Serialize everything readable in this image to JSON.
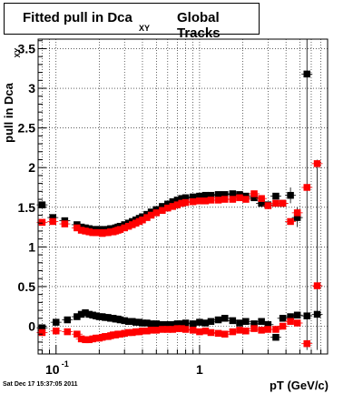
{
  "title": {
    "main": "Fitted pull in Dca",
    "sub": "XY",
    "tail": "Global Tracks"
  },
  "date_stamp": "Sat Dec 17 15:37:05 2011",
  "chart_data": {
    "type": "scatter",
    "title": "Fitted pull in Dca XY Global Tracks",
    "xlabel": "pT (GeV/c)",
    "ylabel": "pull in Dca",
    "ylabel_sub": "XY",
    "xscale": "log",
    "xlim": [
      0.075,
      7.8
    ],
    "ylim": [
      -0.35,
      3.62
    ],
    "grid": true,
    "x_ticks": [
      {
        "value": 0.1,
        "label": "10",
        "exp": "-1"
      },
      {
        "value": 1,
        "label": "1",
        "exp": ""
      }
    ],
    "y_ticks": [
      {
        "value": 0,
        "label": "0"
      },
      {
        "value": 0.5,
        "label": "0.5"
      },
      {
        "value": 1,
        "label": "1"
      },
      {
        "value": 1.5,
        "label": "1.5"
      },
      {
        "value": 2,
        "label": "2"
      },
      {
        "value": 2.5,
        "label": "2.5"
      },
      {
        "value": 3,
        "label": "3"
      },
      {
        "value": 3.5,
        "label": "3.5"
      }
    ],
    "series": [
      {
        "color": "#000000",
        "marker": "square",
        "points": [
          {
            "x": 0.08,
            "y": 1.53
          },
          {
            "x": 0.095,
            "y": 1.37
          },
          {
            "x": 0.115,
            "y": 1.33
          },
          {
            "x": 0.14,
            "y": 1.28
          },
          {
            "x": 0.15,
            "y": 1.25
          },
          {
            "x": 0.16,
            "y": 1.24
          },
          {
            "x": 0.17,
            "y": 1.23
          },
          {
            "x": 0.18,
            "y": 1.22
          },
          {
            "x": 0.19,
            "y": 1.22
          },
          {
            "x": 0.2,
            "y": 1.22
          },
          {
            "x": 0.21,
            "y": 1.21
          },
          {
            "x": 0.22,
            "y": 1.22
          },
          {
            "x": 0.23,
            "y": 1.22
          },
          {
            "x": 0.24,
            "y": 1.23
          },
          {
            "x": 0.25,
            "y": 1.23
          },
          {
            "x": 0.26,
            "y": 1.24
          },
          {
            "x": 0.27,
            "y": 1.25
          },
          {
            "x": 0.28,
            "y": 1.26
          },
          {
            "x": 0.3,
            "y": 1.28
          },
          {
            "x": 0.32,
            "y": 1.3
          },
          {
            "x": 0.34,
            "y": 1.32
          },
          {
            "x": 0.36,
            "y": 1.34
          },
          {
            "x": 0.38,
            "y": 1.36
          },
          {
            "x": 0.4,
            "y": 1.38
          },
          {
            "x": 0.43,
            "y": 1.41
          },
          {
            "x": 0.46,
            "y": 1.44
          },
          {
            "x": 0.5,
            "y": 1.47
          },
          {
            "x": 0.55,
            "y": 1.51
          },
          {
            "x": 0.6,
            "y": 1.54
          },
          {
            "x": 0.65,
            "y": 1.57
          },
          {
            "x": 0.7,
            "y": 1.59
          },
          {
            "x": 0.75,
            "y": 1.61
          },
          {
            "x": 0.8,
            "y": 1.62
          },
          {
            "x": 0.9,
            "y": 1.63
          },
          {
            "x": 1.0,
            "y": 1.64
          },
          {
            "x": 1.1,
            "y": 1.65
          },
          {
            "x": 1.2,
            "y": 1.65
          },
          {
            "x": 1.35,
            "y": 1.66
          },
          {
            "x": 1.5,
            "y": 1.66
          },
          {
            "x": 1.7,
            "y": 1.67
          },
          {
            "x": 1.9,
            "y": 1.66
          },
          {
            "x": 2.1,
            "y": 1.64
          },
          {
            "x": 2.4,
            "y": 1.62
          },
          {
            "x": 2.7,
            "y": 1.55
          },
          {
            "x": 3.0,
            "y": 1.53
          },
          {
            "x": 3.4,
            "y": 1.64
          },
          {
            "x": 3.8,
            "y": 1.55
          },
          {
            "x": 4.3,
            "y": 1.65
          },
          {
            "x": 4.8,
            "y": 1.37
          },
          {
            "x": 5.6,
            "y": 3.18
          },
          {
            "x": 0.08,
            "y": -0.02
          },
          {
            "x": 0.1,
            "y": 0.05
          },
          {
            "x": 0.12,
            "y": 0.08
          },
          {
            "x": 0.14,
            "y": 0.12
          },
          {
            "x": 0.15,
            "y": 0.15
          },
          {
            "x": 0.16,
            "y": 0.17
          },
          {
            "x": 0.17,
            "y": 0.15
          },
          {
            "x": 0.18,
            "y": 0.14
          },
          {
            "x": 0.19,
            "y": 0.13
          },
          {
            "x": 0.2,
            "y": 0.12
          },
          {
            "x": 0.21,
            "y": 0.12
          },
          {
            "x": 0.22,
            "y": 0.11
          },
          {
            "x": 0.23,
            "y": 0.11
          },
          {
            "x": 0.24,
            "y": 0.1
          },
          {
            "x": 0.25,
            "y": 0.1
          },
          {
            "x": 0.26,
            "y": 0.09
          },
          {
            "x": 0.27,
            "y": 0.09
          },
          {
            "x": 0.28,
            "y": 0.08
          },
          {
            "x": 0.3,
            "y": 0.07
          },
          {
            "x": 0.32,
            "y": 0.06
          },
          {
            "x": 0.34,
            "y": 0.06
          },
          {
            "x": 0.36,
            "y": 0.05
          },
          {
            "x": 0.38,
            "y": 0.05
          },
          {
            "x": 0.4,
            "y": 0.04
          },
          {
            "x": 0.43,
            "y": 0.04
          },
          {
            "x": 0.46,
            "y": 0.03
          },
          {
            "x": 0.5,
            "y": 0.03
          },
          {
            "x": 0.55,
            "y": 0.02
          },
          {
            "x": 0.6,
            "y": 0.02
          },
          {
            "x": 0.65,
            "y": 0.02
          },
          {
            "x": 0.7,
            "y": 0.03
          },
          {
            "x": 0.75,
            "y": 0.03
          },
          {
            "x": 0.8,
            "y": 0.04
          },
          {
            "x": 0.9,
            "y": 0.03
          },
          {
            "x": 1.0,
            "y": 0.05
          },
          {
            "x": 1.1,
            "y": 0.04
          },
          {
            "x": 1.2,
            "y": 0.06
          },
          {
            "x": 1.35,
            "y": 0.08
          },
          {
            "x": 1.5,
            "y": 0.1
          },
          {
            "x": 1.7,
            "y": 0.07
          },
          {
            "x": 1.9,
            "y": 0.04
          },
          {
            "x": 2.1,
            "y": 0.06
          },
          {
            "x": 2.4,
            "y": 0.03
          },
          {
            "x": 2.7,
            "y": 0.06
          },
          {
            "x": 3.0,
            "y": 0.02
          },
          {
            "x": 3.4,
            "y": -0.14
          },
          {
            "x": 3.8,
            "y": 0.1
          },
          {
            "x": 4.3,
            "y": 0.12
          },
          {
            "x": 4.8,
            "y": 0.14
          },
          {
            "x": 5.6,
            "y": 0.13
          },
          {
            "x": 6.6,
            "y": 0.15
          }
        ]
      },
      {
        "color": "#ff0000",
        "marker": "square",
        "points": [
          {
            "x": 0.08,
            "y": 1.31
          },
          {
            "x": 0.095,
            "y": 1.32
          },
          {
            "x": 0.115,
            "y": 1.29
          },
          {
            "x": 0.14,
            "y": 1.24
          },
          {
            "x": 0.15,
            "y": 1.21
          },
          {
            "x": 0.16,
            "y": 1.2
          },
          {
            "x": 0.17,
            "y": 1.19
          },
          {
            "x": 0.18,
            "y": 1.18
          },
          {
            "x": 0.19,
            "y": 1.18
          },
          {
            "x": 0.2,
            "y": 1.18
          },
          {
            "x": 0.21,
            "y": 1.17
          },
          {
            "x": 0.22,
            "y": 1.18
          },
          {
            "x": 0.23,
            "y": 1.18
          },
          {
            "x": 0.24,
            "y": 1.19
          },
          {
            "x": 0.25,
            "y": 1.19
          },
          {
            "x": 0.26,
            "y": 1.2
          },
          {
            "x": 0.27,
            "y": 1.21
          },
          {
            "x": 0.28,
            "y": 1.22
          },
          {
            "x": 0.3,
            "y": 1.24
          },
          {
            "x": 0.32,
            "y": 1.26
          },
          {
            "x": 0.34,
            "y": 1.28
          },
          {
            "x": 0.36,
            "y": 1.3
          },
          {
            "x": 0.38,
            "y": 1.32
          },
          {
            "x": 0.4,
            "y": 1.34
          },
          {
            "x": 0.43,
            "y": 1.37
          },
          {
            "x": 0.46,
            "y": 1.4
          },
          {
            "x": 0.5,
            "y": 1.43
          },
          {
            "x": 0.55,
            "y": 1.46
          },
          {
            "x": 0.6,
            "y": 1.49
          },
          {
            "x": 0.65,
            "y": 1.51
          },
          {
            "x": 0.7,
            "y": 1.53
          },
          {
            "x": 0.75,
            "y": 1.55
          },
          {
            "x": 0.8,
            "y": 1.56
          },
          {
            "x": 0.9,
            "y": 1.57
          },
          {
            "x": 1.0,
            "y": 1.58
          },
          {
            "x": 1.1,
            "y": 1.58
          },
          {
            "x": 1.2,
            "y": 1.59
          },
          {
            "x": 1.35,
            "y": 1.59
          },
          {
            "x": 1.5,
            "y": 1.6
          },
          {
            "x": 1.7,
            "y": 1.6
          },
          {
            "x": 1.9,
            "y": 1.62
          },
          {
            "x": 2.1,
            "y": 1.6
          },
          {
            "x": 2.4,
            "y": 1.67
          },
          {
            "x": 2.7,
            "y": 1.61
          },
          {
            "x": 3.0,
            "y": 1.52
          },
          {
            "x": 3.4,
            "y": 1.55
          },
          {
            "x": 3.8,
            "y": 1.55
          },
          {
            "x": 4.3,
            "y": 1.32
          },
          {
            "x": 4.8,
            "y": 1.43
          },
          {
            "x": 5.6,
            "y": 1.75
          },
          {
            "x": 6.6,
            "y": 2.05
          },
          {
            "x": 0.08,
            "y": -0.08
          },
          {
            "x": 0.1,
            "y": -0.06
          },
          {
            "x": 0.12,
            "y": -0.07
          },
          {
            "x": 0.14,
            "y": -0.1
          },
          {
            "x": 0.15,
            "y": -0.16
          },
          {
            "x": 0.16,
            "y": -0.17
          },
          {
            "x": 0.17,
            "y": -0.17
          },
          {
            "x": 0.18,
            "y": -0.16
          },
          {
            "x": 0.19,
            "y": -0.15
          },
          {
            "x": 0.2,
            "y": -0.15
          },
          {
            "x": 0.21,
            "y": -0.14
          },
          {
            "x": 0.22,
            "y": -0.13
          },
          {
            "x": 0.23,
            "y": -0.13
          },
          {
            "x": 0.24,
            "y": -0.12
          },
          {
            "x": 0.25,
            "y": -0.11
          },
          {
            "x": 0.26,
            "y": -0.11
          },
          {
            "x": 0.27,
            "y": -0.1
          },
          {
            "x": 0.28,
            "y": -0.1
          },
          {
            "x": 0.3,
            "y": -0.09
          },
          {
            "x": 0.32,
            "y": -0.08
          },
          {
            "x": 0.34,
            "y": -0.08
          },
          {
            "x": 0.36,
            "y": -0.07
          },
          {
            "x": 0.38,
            "y": -0.07
          },
          {
            "x": 0.4,
            "y": -0.06
          },
          {
            "x": 0.43,
            "y": -0.06
          },
          {
            "x": 0.46,
            "y": -0.05
          },
          {
            "x": 0.5,
            "y": -0.05
          },
          {
            "x": 0.55,
            "y": -0.04
          },
          {
            "x": 0.6,
            "y": -0.04
          },
          {
            "x": 0.65,
            "y": -0.04
          },
          {
            "x": 0.7,
            "y": -0.03
          },
          {
            "x": 0.75,
            "y": -0.03
          },
          {
            "x": 0.8,
            "y": -0.04
          },
          {
            "x": 0.9,
            "y": -0.05
          },
          {
            "x": 1.0,
            "y": -0.07
          },
          {
            "x": 1.1,
            "y": -0.06
          },
          {
            "x": 1.2,
            "y": -0.08
          },
          {
            "x": 1.35,
            "y": -0.09
          },
          {
            "x": 1.5,
            "y": -0.1
          },
          {
            "x": 1.7,
            "y": -0.07
          },
          {
            "x": 1.9,
            "y": -0.05
          },
          {
            "x": 2.1,
            "y": -0.06
          },
          {
            "x": 2.4,
            "y": -0.03
          },
          {
            "x": 2.7,
            "y": -0.05
          },
          {
            "x": 3.0,
            "y": -0.04
          },
          {
            "x": 3.4,
            "y": -0.04
          },
          {
            "x": 3.8,
            "y": 0.0
          },
          {
            "x": 4.3,
            "y": 0.06
          },
          {
            "x": 4.8,
            "y": 0.04
          },
          {
            "x": 5.6,
            "y": -0.22
          },
          {
            "x": 6.6,
            "y": 0.51
          }
        ]
      }
    ],
    "error_bars": [
      {
        "x": 5.6,
        "lo": -0.3,
        "hi": 3.62,
        "color": "#000000"
      },
      {
        "x": 6.6,
        "lo": -0.3,
        "hi": 2.1,
        "color": "#000000"
      },
      {
        "x": 4.3,
        "lo": 1.55,
        "hi": 1.75,
        "color": "#000000"
      },
      {
        "x": 4.8,
        "lo": 1.25,
        "hi": 1.5,
        "color": "#000000"
      }
    ]
  }
}
